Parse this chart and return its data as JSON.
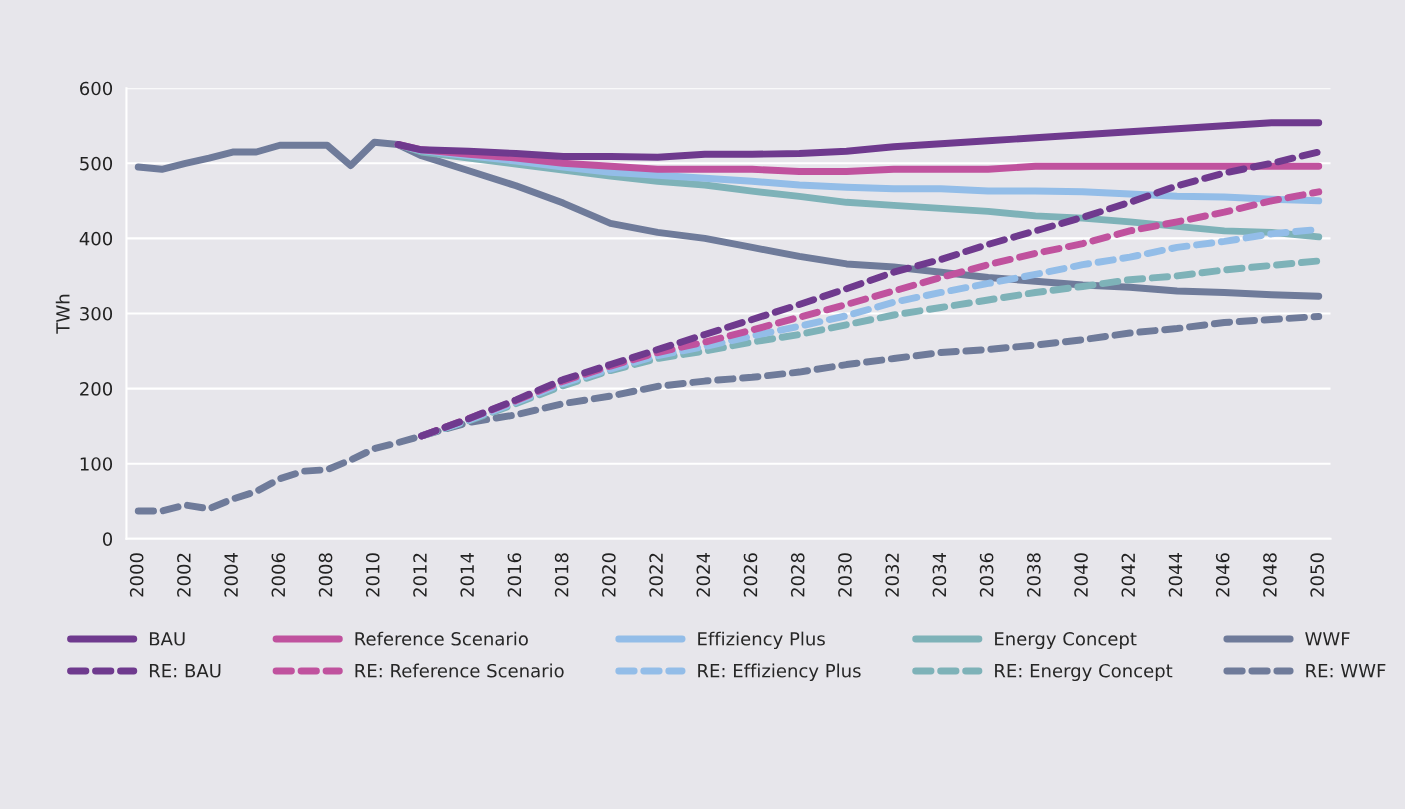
{
  "chart_data": {
    "type": "line",
    "ylabel": "TWh",
    "x": [
      2000,
      2001,
      2002,
      2003,
      2004,
      2005,
      2006,
      2007,
      2008,
      2009,
      2010,
      2011,
      2012,
      2014,
      2016,
      2018,
      2020,
      2022,
      2024,
      2026,
      2028,
      2030,
      2032,
      2034,
      2036,
      2038,
      2040,
      2042,
      2044,
      2046,
      2048,
      2050
    ],
    "xlim": [
      1999.5,
      2050.5
    ],
    "xticks": [
      2000,
      2002,
      2004,
      2006,
      2008,
      2010,
      2012,
      2014,
      2016,
      2018,
      2020,
      2022,
      2024,
      2026,
      2028,
      2030,
      2032,
      2034,
      2036,
      2038,
      2040,
      2042,
      2044,
      2046,
      2048,
      2050
    ],
    "ylim": [
      0,
      600
    ],
    "yticks": [
      0,
      100,
      200,
      300,
      400,
      500,
      600
    ],
    "grid": "y",
    "legend": "bottom",
    "series": [
      {
        "name": "BAU",
        "color": "#6f3a8e",
        "line_style": "solid",
        "values": [
          null,
          null,
          null,
          null,
          null,
          null,
          null,
          null,
          null,
          null,
          null,
          525,
          518,
          516,
          513,
          509,
          509,
          508,
          512,
          512,
          513,
          516,
          522,
          526,
          530,
          534,
          538,
          542,
          546,
          550,
          554,
          554
        ]
      },
      {
        "name": "RE: BAU",
        "color": "#6f3a8e",
        "line_style": "dashed",
        "values": [
          null,
          null,
          null,
          null,
          null,
          null,
          null,
          null,
          null,
          null,
          null,
          null,
          137,
          160,
          185,
          212,
          232,
          252,
          272,
          292,
          312,
          333,
          355,
          372,
          392,
          410,
          428,
          448,
          470,
          487,
          500,
          515
        ]
      },
      {
        "name": "Reference Scenario",
        "color": "#c0529e",
        "line_style": "solid",
        "values": [
          null,
          null,
          null,
          null,
          null,
          null,
          null,
          null,
          null,
          null,
          null,
          525,
          518,
          512,
          507,
          500,
          496,
          492,
          492,
          492,
          489,
          489,
          492,
          492,
          492,
          496,
          496,
          496,
          496,
          496,
          496,
          496
        ]
      },
      {
        "name": "RE: Reference Scenario",
        "color": "#c0529e",
        "line_style": "dashed",
        "values": [
          null,
          null,
          null,
          null,
          null,
          null,
          null,
          null,
          null,
          null,
          null,
          null,
          137,
          160,
          184,
          210,
          230,
          248,
          262,
          278,
          295,
          312,
          330,
          348,
          365,
          380,
          393,
          410,
          422,
          435,
          450,
          462
        ]
      },
      {
        "name": "Effiziency Plus",
        "color": "#93bde8",
        "line_style": "solid",
        "values": [
          null,
          null,
          null,
          null,
          null,
          null,
          null,
          null,
          null,
          null,
          null,
          525,
          517,
          510,
          503,
          495,
          488,
          484,
          480,
          476,
          471,
          468,
          466,
          466,
          463,
          463,
          462,
          459,
          456,
          455,
          452,
          450
        ]
      },
      {
        "name": "RE: Effiziency Plus",
        "color": "#93bde8",
        "line_style": "dashed",
        "values": [
          null,
          null,
          null,
          null,
          null,
          null,
          null,
          null,
          null,
          null,
          null,
          null,
          137,
          158,
          182,
          207,
          226,
          244,
          256,
          270,
          283,
          297,
          315,
          328,
          340,
          352,
          365,
          375,
          388,
          396,
          406,
          412
        ]
      },
      {
        "name": "Energy Concept",
        "color": "#7eb2b8",
        "line_style": "solid",
        "values": [
          null,
          null,
          null,
          null,
          null,
          null,
          null,
          null,
          null,
          null,
          null,
          525,
          515,
          507,
          499,
          491,
          483,
          476,
          471,
          463,
          456,
          448,
          444,
          440,
          436,
          430,
          427,
          422,
          416,
          410,
          408,
          402
        ]
      },
      {
        "name": "RE: Energy Concept",
        "color": "#7eb2b8",
        "line_style": "dashed",
        "values": [
          null,
          null,
          null,
          null,
          null,
          null,
          null,
          null,
          null,
          null,
          null,
          null,
          137,
          157,
          180,
          204,
          224,
          240,
          250,
          262,
          272,
          285,
          298,
          308,
          318,
          328,
          336,
          345,
          350,
          358,
          364,
          370
        ]
      },
      {
        "name": "WWF",
        "color": "#6f7b9a",
        "line_style": "solid",
        "values": [
          495,
          492,
          500,
          507,
          515,
          515,
          524,
          524,
          524,
          497,
          528,
          525,
          510,
          490,
          470,
          447,
          420,
          408,
          400,
          388,
          376,
          366,
          362,
          355,
          348,
          343,
          338,
          335,
          330,
          328,
          325,
          323
        ]
      },
      {
        "name": "RE: WWF",
        "color": "#6f7b9a",
        "line_style": "dashed",
        "values": [
          37,
          37,
          45,
          40,
          53,
          63,
          80,
          90,
          92,
          105,
          120,
          128,
          137,
          155,
          165,
          180,
          190,
          203,
          210,
          215,
          222,
          232,
          240,
          248,
          252,
          258,
          265,
          274,
          280,
          288,
          292,
          296
        ]
      }
    ]
  }
}
